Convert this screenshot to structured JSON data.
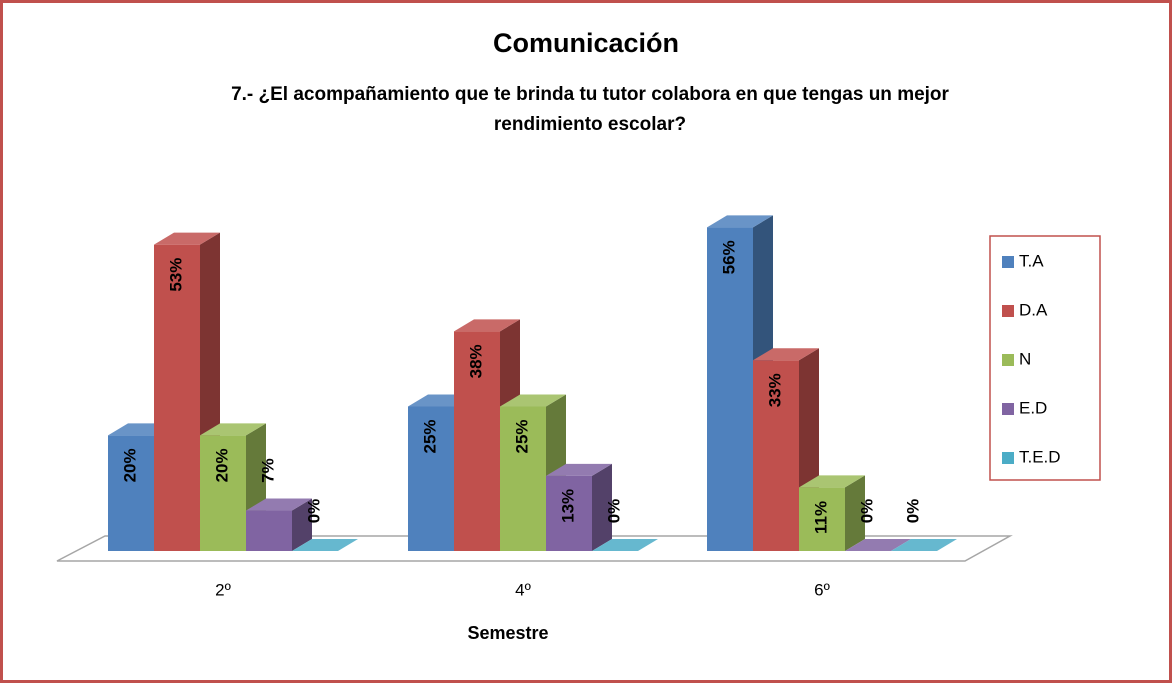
{
  "chart_data": {
    "type": "bar3d",
    "title": "Comunicación",
    "subtitle": "7.- ¿El acompañamiento que te brinda tu tutor colabora en que tengas un mejor rendimiento escolar?",
    "xlabel": "Semestre",
    "categories": [
      "2º",
      "4º",
      "6º"
    ],
    "series": [
      {
        "name": "T.A",
        "color": "#4f81bd",
        "values": [
          20,
          25,
          56
        ],
        "value_labels": [
          "20%",
          "25%",
          "56%"
        ]
      },
      {
        "name": "D.A",
        "color": "#c0504d",
        "values": [
          53,
          38,
          33
        ],
        "value_labels": [
          "53%",
          "38%",
          "33%"
        ]
      },
      {
        "name": "N",
        "color": "#9bbb59",
        "values": [
          20,
          25,
          11
        ],
        "value_labels": [
          "20%",
          "25%",
          "11%"
        ]
      },
      {
        "name": "E.D",
        "color": "#8064a2",
        "values": [
          7,
          13,
          0
        ],
        "value_labels": [
          "7%",
          "13%",
          "0%"
        ]
      },
      {
        "name": "T.E.D",
        "color": "#4bacc6",
        "values": [
          0,
          0,
          0
        ],
        "value_labels": [
          "0%",
          "0%",
          "0%"
        ]
      }
    ],
    "legend": "right"
  }
}
